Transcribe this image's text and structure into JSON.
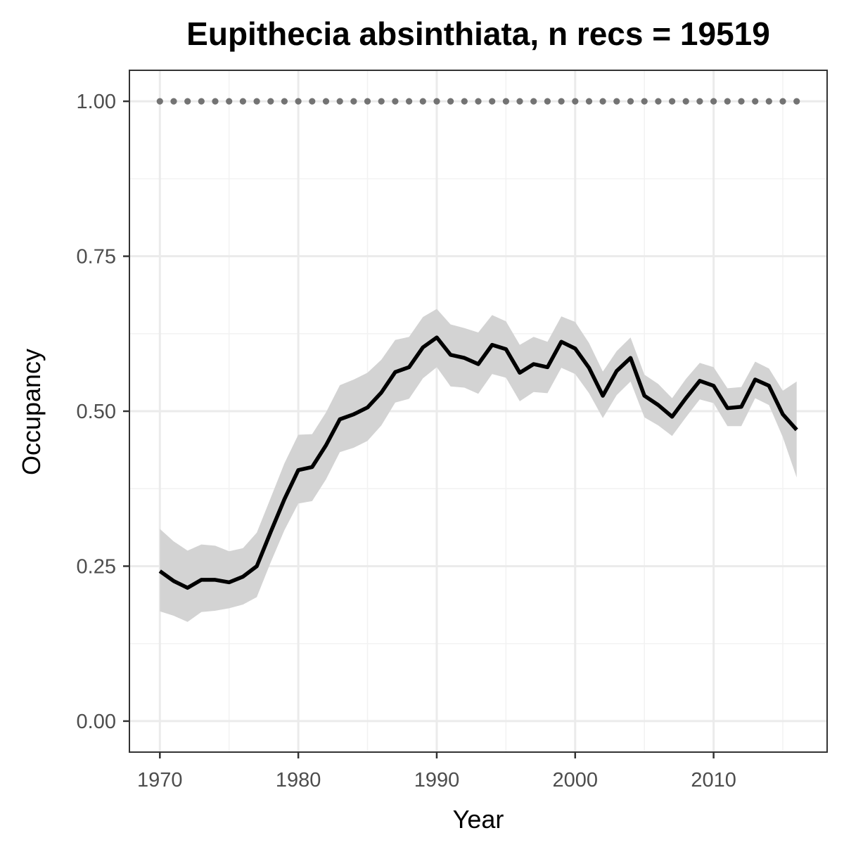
{
  "chart_data": {
    "type": "line",
    "title": "Eupithecia absinthiata, n recs = 19519",
    "xlabel": "Year",
    "ylabel": "Occupancy",
    "xlim": [
      1967.8,
      2018.2
    ],
    "ylim": [
      -0.05,
      1.05
    ],
    "x_ticks": [
      1970,
      1980,
      1990,
      2000,
      2010
    ],
    "x_tick_labels": [
      "1970",
      "1980",
      "1990",
      "2000",
      "2010"
    ],
    "y_ticks": [
      0,
      0.25,
      0.5,
      0.75,
      1
    ],
    "y_tick_labels": [
      "0.00",
      "0.25",
      "0.50",
      "0.75",
      "1.00"
    ],
    "grid": true,
    "series": [
      {
        "role": "mean",
        "color": "#000000",
        "x": [
          1970,
          1971,
          1972,
          1973,
          1974,
          1975,
          1976,
          1977,
          1978,
          1979,
          1980,
          1981,
          1982,
          1983,
          1984,
          1985,
          1986,
          1987,
          1988,
          1989,
          1990,
          1991,
          1992,
          1993,
          1994,
          1995,
          1996,
          1997,
          1998,
          1999,
          2000,
          2001,
          2002,
          2003,
          2004,
          2005,
          2006,
          2007,
          2008,
          2009,
          2010,
          2011,
          2012,
          2013,
          2014,
          2015,
          2016
        ],
        "y": [
          0.242,
          0.226,
          0.215,
          0.228,
          0.228,
          0.224,
          0.233,
          0.25,
          0.305,
          0.358,
          0.405,
          0.41,
          0.445,
          0.487,
          0.495,
          0.506,
          0.53,
          0.563,
          0.571,
          0.603,
          0.619,
          0.591,
          0.586,
          0.576,
          0.607,
          0.6,
          0.562,
          0.576,
          0.571,
          0.612,
          0.601,
          0.57,
          0.525,
          0.565,
          0.586,
          0.525,
          0.51,
          0.491,
          0.521,
          0.549,
          0.541,
          0.505,
          0.507,
          0.551,
          0.541,
          0.495,
          0.47
        ]
      },
      {
        "role": "ci_lower",
        "color": "#d3d3d3",
        "x": [
          1970,
          1971,
          1972,
          1973,
          1974,
          1975,
          1976,
          1977,
          1978,
          1979,
          1980,
          1981,
          1982,
          1983,
          1984,
          1985,
          1986,
          1987,
          1988,
          1989,
          1990,
          1991,
          1992,
          1993,
          1994,
          1995,
          1996,
          1997,
          1998,
          1999,
          2000,
          2001,
          2002,
          2003,
          2004,
          2005,
          2006,
          2007,
          2008,
          2009,
          2010,
          2011,
          2012,
          2013,
          2014,
          2015,
          2016
        ],
        "y": [
          0.177,
          0.17,
          0.16,
          0.176,
          0.178,
          0.182,
          0.188,
          0.2,
          0.256,
          0.308,
          0.351,
          0.355,
          0.39,
          0.434,
          0.441,
          0.452,
          0.477,
          0.514,
          0.52,
          0.553,
          0.571,
          0.54,
          0.538,
          0.528,
          0.56,
          0.554,
          0.516,
          0.531,
          0.529,
          0.57,
          0.56,
          0.529,
          0.489,
          0.526,
          0.548,
          0.49,
          0.477,
          0.46,
          0.49,
          0.519,
          0.513,
          0.476,
          0.476,
          0.521,
          0.51,
          0.458,
          0.393
        ]
      },
      {
        "role": "ci_upper",
        "color": "#d3d3d3",
        "x": [
          1970,
          1971,
          1972,
          1973,
          1974,
          1975,
          1976,
          1977,
          1978,
          1979,
          1980,
          1981,
          1982,
          1983,
          1984,
          1985,
          1986,
          1987,
          1988,
          1989,
          1990,
          1991,
          1992,
          1993,
          1994,
          1995,
          1996,
          1997,
          1998,
          1999,
          2000,
          2001,
          2002,
          2003,
          2004,
          2005,
          2006,
          2007,
          2008,
          2009,
          2010,
          2011,
          2012,
          2013,
          2014,
          2015,
          2016
        ],
        "y": [
          0.31,
          0.29,
          0.275,
          0.285,
          0.283,
          0.274,
          0.279,
          0.304,
          0.36,
          0.416,
          0.462,
          0.463,
          0.498,
          0.542,
          0.551,
          0.562,
          0.583,
          0.615,
          0.62,
          0.652,
          0.665,
          0.64,
          0.634,
          0.627,
          0.655,
          0.645,
          0.607,
          0.62,
          0.612,
          0.653,
          0.644,
          0.61,
          0.564,
          0.597,
          0.619,
          0.559,
          0.544,
          0.521,
          0.552,
          0.578,
          0.571,
          0.537,
          0.539,
          0.58,
          0.569,
          0.533,
          0.548
        ]
      },
      {
        "role": "reference",
        "color": "#737373",
        "style": "dotted",
        "x": [
          1970,
          2016
        ],
        "y": [
          1,
          1
        ]
      }
    ]
  }
}
